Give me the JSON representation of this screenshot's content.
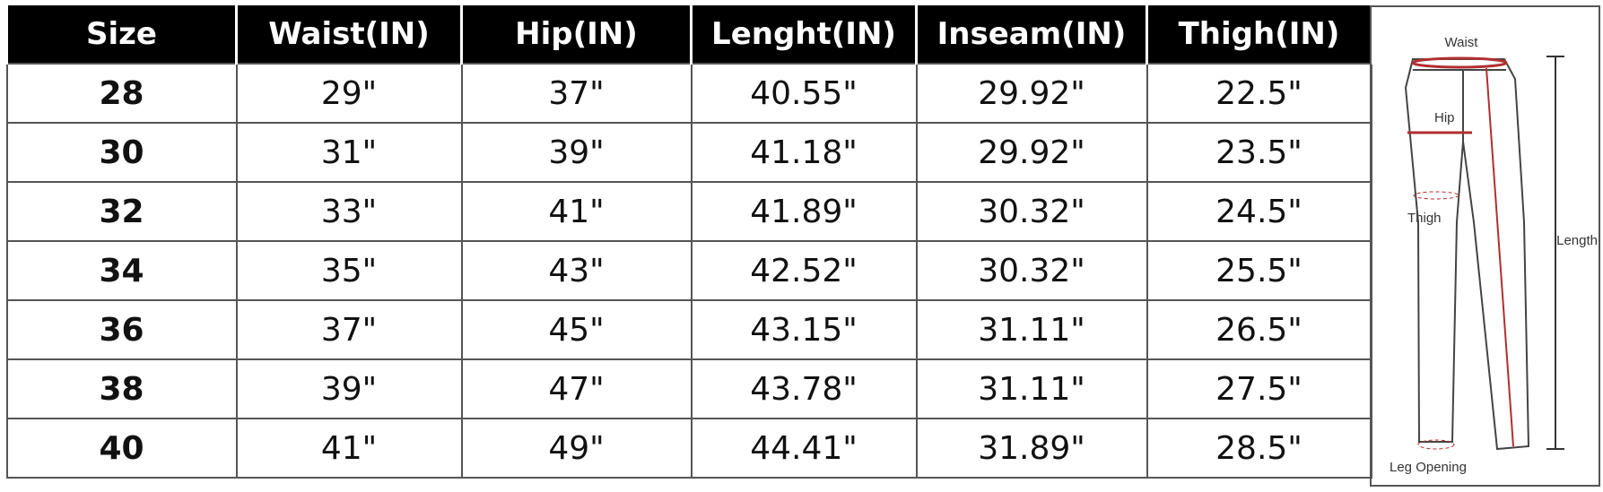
{
  "table": {
    "header": [
      "Size",
      "Waist(IN)",
      "Hip(IN)",
      "Lenght(IN)",
      "Inseam(IN)",
      "Thigh(IN)"
    ],
    "rows": [
      [
        "28",
        "29\"",
        "37\"",
        "40.55\"",
        "29.92\"",
        "22.5\""
      ],
      [
        "30",
        "31\"",
        "39\"",
        "41.18\"",
        "29.92\"",
        "23.5\""
      ],
      [
        "32",
        "33\"",
        "41\"",
        "41.89\"",
        "30.32\"",
        "24.5\""
      ],
      [
        "34",
        "35\"",
        "43\"",
        "42.52\"",
        "30.32\"",
        "25.5\""
      ],
      [
        "36",
        "37\"",
        "45\"",
        "43.15\"",
        "31.11\"",
        "26.5\""
      ],
      [
        "38",
        "39\"",
        "47\"",
        "43.78\"",
        "31.11\"",
        "27.5\""
      ],
      [
        "40",
        "41\"",
        "49\"",
        "44.41\"",
        "31.89\"",
        "28.5\""
      ]
    ]
  },
  "diagram": {
    "labels": {
      "waist": "Waist",
      "hip": "Hip",
      "thigh": "Thigh",
      "length": "Length",
      "leg_opening": "Leg Opening"
    }
  }
}
